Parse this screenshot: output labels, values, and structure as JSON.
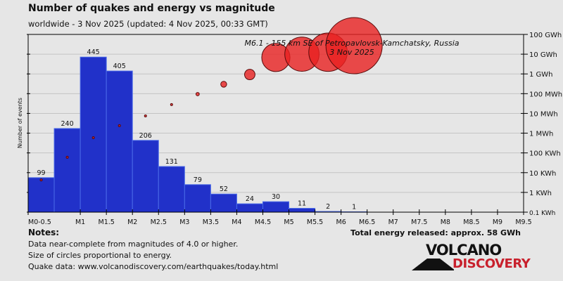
{
  "title": "Number of quakes and energy vs magnitude",
  "subtitle": "worldwide -  3 Nov 2025 (updated: 4 Nov 2025, 00:33 GMT)",
  "notes": {
    "heading": "Notes:",
    "lines": [
      "Data near-complete from magnitudes of 4.0 or higher.",
      "Size of circles proportional to energy.",
      "Quake data: www.volcanodiscovery.com/earthquakes/today.html"
    ]
  },
  "total_energy": "Total energy released: approx. 58 GWh",
  "logo": {
    "line1": "VOLCANO",
    "line2": "DISCOVERY"
  },
  "chart_data": {
    "type": "bar",
    "ylabel": "Number of events",
    "x_tick_labels": [
      "M0-0.5",
      "M1",
      "M1.5",
      "M2",
      "M2.5",
      "M3",
      "M3.5",
      "M4",
      "M4.5",
      "M5",
      "M5.5",
      "M6",
      "M6.5",
      "M7",
      "M7.5",
      "M8",
      "M8.5",
      "M9",
      "M9.5"
    ],
    "bins": [
      "0-0.5",
      "0.5-1",
      "1-1.5",
      "1.5-2",
      "2-2.5",
      "2.5-3",
      "3-3.5",
      "3.5-4",
      "4-4.5",
      "4.5-5",
      "5-5.5",
      "5.5-6",
      "6-6.5"
    ],
    "counts": [
      99,
      240,
      445,
      405,
      206,
      131,
      79,
      52,
      24,
      30,
      11,
      2,
      1
    ],
    "energy_kwh": [
      4.3,
      60,
      590,
      2400,
      7500,
      28000,
      95000,
      300000,
      930000,
      6800000,
      10000000,
      12600000,
      27000000
    ],
    "xlim": [
      0,
      9.5
    ],
    "ylim_counts": [
      0,
      510
    ],
    "right_axis": {
      "scale": "log",
      "ticks": [
        "0.1 KWh",
        "1 KWh",
        "10 KWh",
        "100 KWh",
        "1 MWh",
        "10 MWh",
        "100 MWh",
        "1 GWh",
        "10 GWh",
        "100 GWh"
      ],
      "range_kwh": [
        0.1,
        100000000
      ]
    },
    "annotation": {
      "line1": "M6.1 - 155 km SE of Petropavlovsk-Kamchatsky, Russia",
      "line2": "3 Nov 2025"
    },
    "colors": {
      "bar": "#2131c9",
      "bar_edge": "#4a6ae8",
      "circle": "#e82020"
    },
    "grid": true
  }
}
